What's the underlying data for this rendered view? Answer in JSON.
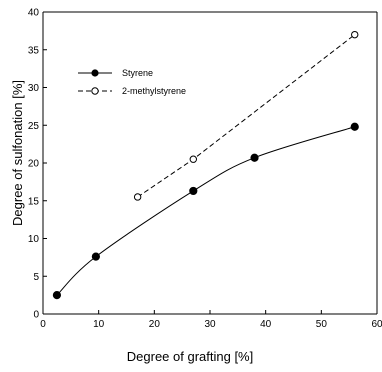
{
  "chart_data": {
    "type": "scatter",
    "xlabel": "Degree of grafting [%]",
    "ylabel": "Degree of sulfonation [%]",
    "xlim": [
      0,
      60
    ],
    "ylim": [
      0,
      40
    ],
    "xticks": [
      "0",
      "10",
      "20",
      "30",
      "40",
      "50",
      "60"
    ],
    "yticks": [
      "0",
      "5",
      "10",
      "15",
      "20",
      "25",
      "30",
      "35",
      "40"
    ],
    "grid": false,
    "legend": "top-left",
    "series": [
      {
        "name": "Styrene",
        "marker": "filled-circle",
        "line": "solid-smooth",
        "color": "#000000",
        "x": [
          2.5,
          9.5,
          27,
          38,
          56
        ],
        "y": [
          2.5,
          7.6,
          16.3,
          20.7,
          24.8
        ]
      },
      {
        "name": "2-methylstyrene",
        "marker": "open-circle",
        "line": "dashed",
        "color": "#000000",
        "x": [
          17,
          27,
          56
        ],
        "y": [
          15.5,
          20.5,
          37
        ]
      }
    ]
  }
}
